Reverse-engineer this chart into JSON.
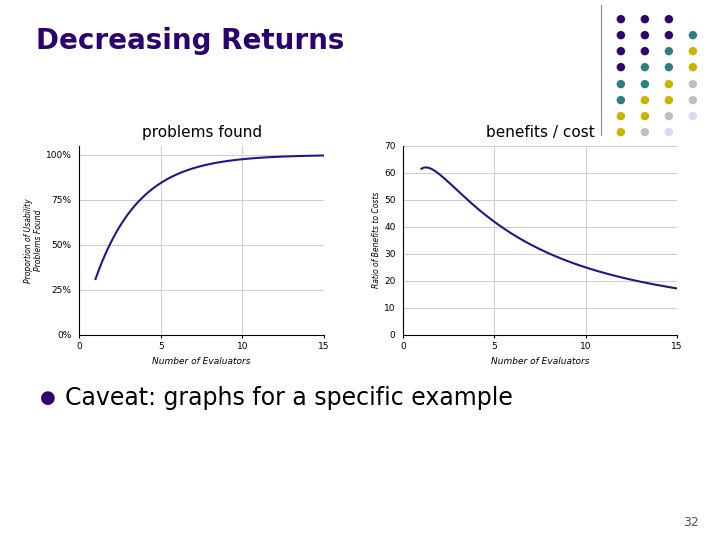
{
  "title": "Decreasing Returns",
  "title_color": "#2d0070",
  "title_fontsize": 20,
  "title_fontweight": "bold",
  "bg_color": "#ffffff",
  "chart1_title": "problems found",
  "chart1_xlabel": "Number of Evaluators",
  "chart1_ylabel": "Proportion of Usability\nProblems Found",
  "chart1_yticks": [
    0,
    0.25,
    0.5,
    0.75,
    1.0
  ],
  "chart1_yticklabels": [
    "0%",
    "25%",
    "50%",
    "75%",
    "100%"
  ],
  "chart1_xlim": [
    0,
    15
  ],
  "chart1_ylim": [
    0,
    1.05
  ],
  "chart2_title": "benefits / cost",
  "chart2_xlabel": "Number of Evaluators",
  "chart2_ylabel": "Ratio of Benefits to Costs",
  "chart2_yticks": [
    0,
    10,
    20,
    30,
    40,
    50,
    60,
    70
  ],
  "chart2_xlim": [
    0,
    15
  ],
  "chart2_ylim": [
    0,
    70
  ],
  "line_color": "#1a1a8c",
  "line_width": 1.5,
  "bullet_text": "Caveat: graphs for a specific example",
  "bullet_fontsize": 17,
  "page_number": "32",
  "dot_grid": [
    [
      "#2d0070",
      "#2d0070",
      "#2d0070"
    ],
    [
      "#2d0070",
      "#2d0070",
      "#2d0070",
      "#2d8080"
    ],
    [
      "#2d0070",
      "#2d0070",
      "#2d8080",
      "#c8b400"
    ],
    [
      "#2d0070",
      "#2d8080",
      "#2d8080",
      "#c8b400"
    ],
    [
      "#2d8080",
      "#2d8080",
      "#c8b400",
      "#c0c0c0"
    ],
    [
      "#2d8080",
      "#c8b400",
      "#c8b400",
      "#c0c0c0"
    ],
    [
      "#c8b400",
      "#c8b400",
      "#c0c0c0",
      "#d8d8f0"
    ],
    [
      "#c8b400",
      "#c0c0c0",
      "#d8d8f0"
    ]
  ]
}
